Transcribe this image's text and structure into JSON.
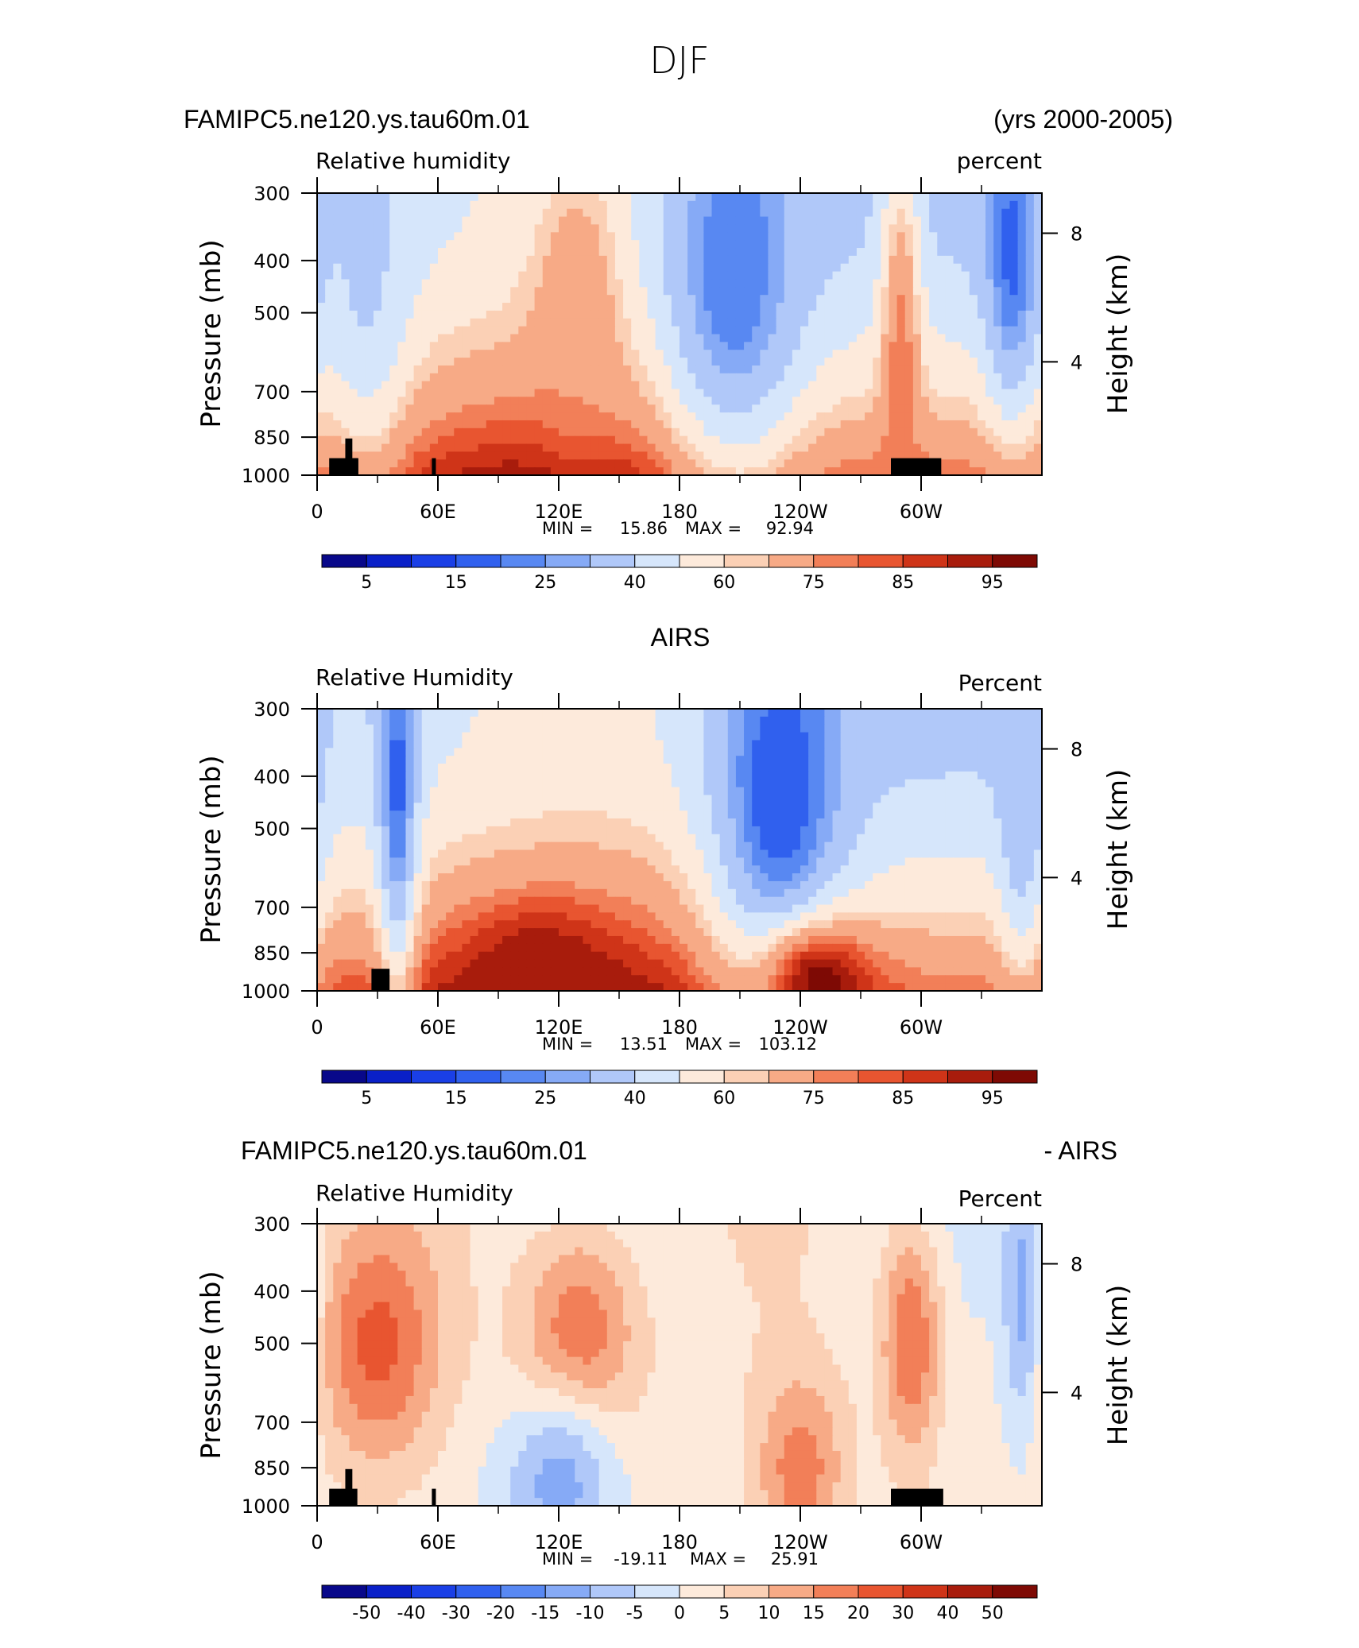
{
  "title": "DJF",
  "chart_data": [
    {
      "type": "heatmap",
      "title_left": "FAMIPC5.ne120.ys.tau60m.01",
      "title_right": "(yrs 2000-2005)",
      "subtitle_left": "Relative humidity",
      "subtitle_right": "percent",
      "ylabel": "Pressure (mb)",
      "ylabel_right": "Height (km)",
      "y_ticks": [
        "300",
        "400",
        "500",
        "700",
        "850",
        "1000"
      ],
      "y_ticks_right": [
        "8",
        "4"
      ],
      "x_ticks": [
        "0",
        "60E",
        "120E",
        "180",
        "120W",
        "60W"
      ],
      "min_label": "MIN =",
      "min_value": "15.86",
      "max_label": "MAX =",
      "max_value": "92.94",
      "colorbar_labels": [
        "5",
        "15",
        "25",
        "40",
        "60",
        "75",
        "85",
        "95"
      ],
      "scale": "abs",
      "features": [
        {
          "lon": 25,
          "p": 400,
          "v": 38,
          "w": 20,
          "h": 0.8
        },
        {
          "lon": 130,
          "p": 500,
          "v": 75,
          "w": 22,
          "h": 0.6
        },
        {
          "lon": 207,
          "p": 420,
          "v": 20,
          "w": 38,
          "h": 0.9
        },
        {
          "lon": 345,
          "p": 380,
          "v": 18,
          "w": 14,
          "h": 0.7
        },
        {
          "lon": 290,
          "p": 650,
          "v": 80,
          "w": 10,
          "h": 0.9
        }
      ]
    },
    {
      "type": "heatmap",
      "title_center": "AIRS",
      "subtitle_left": "Relative Humidity",
      "subtitle_right": "Percent",
      "ylabel": "Pressure (mb)",
      "ylabel_right": "Height (km)",
      "y_ticks": [
        "300",
        "400",
        "500",
        "700",
        "850",
        "1000"
      ],
      "y_ticks_right": [
        "8",
        "4"
      ],
      "x_ticks": [
        "0",
        "60E",
        "120E",
        "180",
        "120W",
        "60W"
      ],
      "min_label": "MIN =",
      "min_value": "13.51",
      "max_label": "MAX =",
      "max_value": "103.12",
      "colorbar_labels": [
        "5",
        "15",
        "25",
        "40",
        "60",
        "75",
        "85",
        "95"
      ],
      "scale": "abs",
      "features": [
        {
          "lon": 40,
          "p": 400,
          "v": 18,
          "w": 10,
          "h": 0.9
        },
        {
          "lon": 230,
          "p": 430,
          "v": 15,
          "w": 35,
          "h": 0.9
        },
        {
          "lon": 350,
          "p": 420,
          "v": 30,
          "w": 12,
          "h": 0.7
        },
        {
          "lon": 110,
          "p": 930,
          "v": 95,
          "w": 40,
          "h": 0.3
        },
        {
          "lon": 250,
          "p": 960,
          "v": 98,
          "w": 30,
          "h": 0.25
        }
      ]
    },
    {
      "type": "heatmap",
      "title_left": "FAMIPC5.ne120.ys.tau60m.01",
      "title_right": "- AIRS",
      "subtitle_left": "Relative Humidity",
      "subtitle_right": "Percent",
      "ylabel": "Pressure (mb)",
      "ylabel_right": "Height (km)",
      "y_ticks": [
        "300",
        "400",
        "500",
        "700",
        "850",
        "1000"
      ],
      "y_ticks_right": [
        "8",
        "4"
      ],
      "x_ticks": [
        "0",
        "60E",
        "120E",
        "180",
        "120W",
        "60W"
      ],
      "min_label": "MIN =",
      "min_value": "-19.11",
      "max_label": "MAX =",
      "max_value": "25.91",
      "colorbar_labels": [
        "-50",
        "-40",
        "-30",
        "-20",
        "-15",
        "-10",
        "-5",
        "0",
        "5",
        "10",
        "15",
        "20",
        "30",
        "40",
        "50"
      ],
      "scale": "diff",
      "features": [
        {
          "lon": 30,
          "p": 500,
          "v": 22,
          "w": 30,
          "h": 0.5
        },
        {
          "lon": 130,
          "p": 500,
          "v": 20,
          "w": 30,
          "h": 0.5
        },
        {
          "lon": 295,
          "p": 500,
          "v": 20,
          "w": 15,
          "h": 0.5
        },
        {
          "lon": 240,
          "p": 850,
          "v": 18,
          "w": 22,
          "h": 0.4
        },
        {
          "lon": 120,
          "p": 920,
          "v": -12,
          "w": 30,
          "h": 0.4
        },
        {
          "lon": 350,
          "p": 400,
          "v": -12,
          "w": 10,
          "h": 0.6
        }
      ]
    }
  ]
}
